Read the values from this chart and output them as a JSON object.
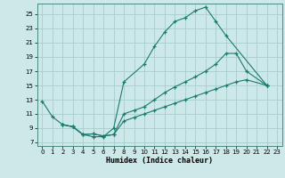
{
  "title": "",
  "xlabel": "Humidex (Indice chaleur)",
  "xlim": [
    -0.5,
    23.5
  ],
  "ylim": [
    6.5,
    26.5
  ],
  "yticks": [
    7,
    9,
    11,
    13,
    15,
    17,
    19,
    21,
    23,
    25
  ],
  "xticks": [
    0,
    1,
    2,
    3,
    4,
    5,
    6,
    7,
    8,
    9,
    10,
    11,
    12,
    13,
    14,
    15,
    16,
    17,
    18,
    19,
    20,
    21,
    22,
    23
  ],
  "bg_color": "#cde8e8",
  "line_color": "#1a7a6e",
  "grid_color": "#a8cccc",
  "line1_x": [
    0,
    1,
    2,
    3,
    4,
    5,
    6,
    7,
    8,
    10,
    11,
    12,
    13,
    14,
    15,
    16,
    17,
    18,
    22
  ],
  "line1_y": [
    12.8,
    10.6,
    9.5,
    9.2,
    8.1,
    7.8,
    7.8,
    9.0,
    15.5,
    18.0,
    20.5,
    22.5,
    24.0,
    24.5,
    25.5,
    26.0,
    24.0,
    22.0,
    15.0
  ],
  "line2_x": [
    2,
    3,
    4,
    5,
    6,
    7,
    8,
    9,
    10,
    11,
    12,
    13,
    14,
    15,
    16,
    17,
    18,
    19,
    20,
    22
  ],
  "line2_y": [
    9.5,
    9.2,
    8.1,
    8.2,
    7.9,
    8.1,
    11.0,
    11.5,
    12.0,
    13.0,
    14.0,
    14.8,
    15.5,
    16.2,
    17.0,
    18.0,
    19.5,
    19.5,
    17.0,
    15.0
  ],
  "line3_x": [
    2,
    3,
    4,
    5,
    6,
    7,
    8,
    9,
    10,
    11,
    12,
    13,
    14,
    15,
    16,
    17,
    18,
    19,
    20,
    22
  ],
  "line3_y": [
    9.5,
    9.2,
    8.1,
    8.2,
    7.9,
    8.1,
    10.0,
    10.5,
    11.0,
    11.5,
    12.0,
    12.5,
    13.0,
    13.5,
    14.0,
    14.5,
    15.0,
    15.5,
    15.8,
    15.0
  ]
}
